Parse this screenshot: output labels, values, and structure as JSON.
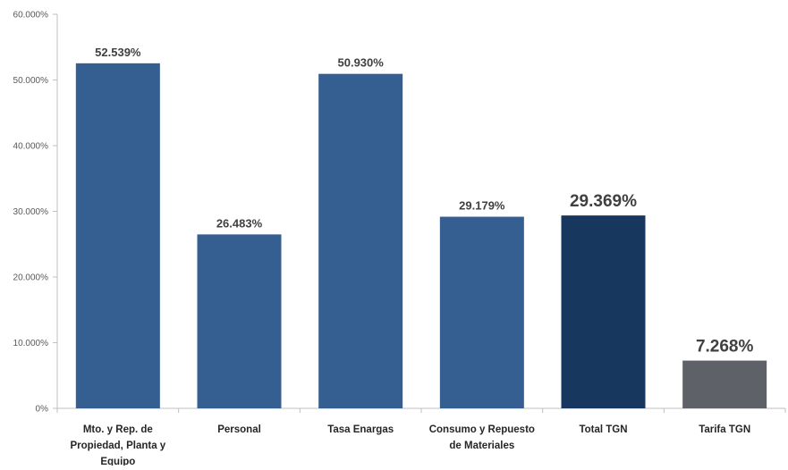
{
  "chart_data": {
    "type": "bar",
    "categories": [
      [
        "Mto. y Rep. de",
        "Propiedad, Planta y",
        "Equipo"
      ],
      [
        "Personal"
      ],
      [
        "Tasa Enargas"
      ],
      [
        "Consumo y Repuesto",
        "de Materiales"
      ],
      [
        "Total  TGN"
      ],
      [
        "Tarifa TGN"
      ]
    ],
    "values": [
      52.539,
      26.483,
      50.93,
      29.179,
      29.369,
      7.268
    ],
    "data_labels": [
      "52.539%",
      "26.483%",
      "50.930%",
      "29.179%",
      "29.369%",
      "7.268%"
    ],
    "highlighted": [
      false,
      false,
      false,
      false,
      true,
      true
    ],
    "colors": [
      "#355f91",
      "#355f91",
      "#355f91",
      "#355f91",
      "#17375e",
      "#5f6168"
    ],
    "y_ticks": [
      0,
      10,
      20,
      30,
      40,
      50,
      60
    ],
    "y_tick_labels": [
      "0%",
      "10.000%",
      "20.000%",
      "30.000%",
      "40.000%",
      "50.000%",
      "60.000%"
    ],
    "ylim": [
      0,
      60
    ],
    "grid": false,
    "legend": "none",
    "title": "",
    "xlabel": "",
    "ylabel": ""
  }
}
